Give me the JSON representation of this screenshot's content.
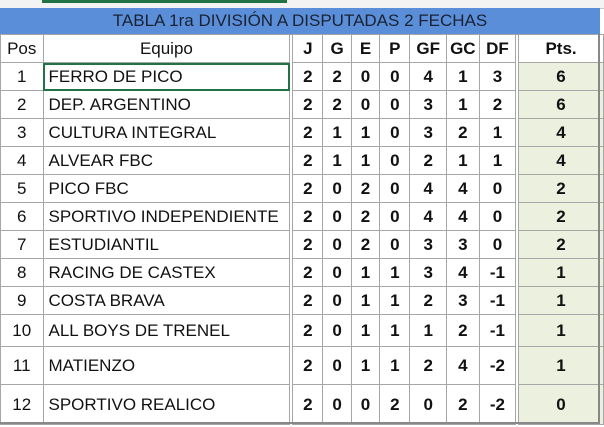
{
  "title": "TABLA 1ra DIVISIÓN A DISPUTADAS 2 FECHAS",
  "columns": [
    "Pos",
    "Equipo",
    "J",
    "G",
    "E",
    "P",
    "GF",
    "GC",
    "DF",
    "Pts."
  ],
  "rows": [
    [
      "1",
      "FERRO DE PICO",
      "2",
      "2",
      "0",
      "0",
      "4",
      "1",
      "3",
      "6"
    ],
    [
      "2",
      "DEP. ARGENTINO",
      "2",
      "2",
      "0",
      "0",
      "3",
      "1",
      "2",
      "6"
    ],
    [
      "3",
      "CULTURA INTEGRAL",
      "2",
      "1",
      "1",
      "0",
      "3",
      "2",
      "1",
      "4"
    ],
    [
      "4",
      "ALVEAR FBC",
      "2",
      "1",
      "1",
      "0",
      "2",
      "1",
      "1",
      "4"
    ],
    [
      "5",
      "PICO FBC",
      "2",
      "0",
      "2",
      "0",
      "4",
      "4",
      "0",
      "2"
    ],
    [
      "6",
      "SPORTIVO INDEPENDIENTE",
      "2",
      "0",
      "2",
      "0",
      "4",
      "4",
      "0",
      "2"
    ],
    [
      "7",
      "ESTUDIANTIL",
      "2",
      "0",
      "2",
      "0",
      "3",
      "3",
      "0",
      "2"
    ],
    [
      "8",
      "RACING DE CASTEX",
      "2",
      "0",
      "1",
      "1",
      "3",
      "4",
      "-1",
      "1"
    ],
    [
      "9",
      "COSTA BRAVA",
      "2",
      "0",
      "1",
      "1",
      "2",
      "3",
      "-1",
      "1"
    ],
    [
      "10",
      "ALL BOYS DE TRENEL",
      "2",
      "0",
      "1",
      "1",
      "1",
      "2",
      "-1",
      "1"
    ],
    [
      "11",
      "MATIENZO",
      "2",
      "0",
      "1",
      "1",
      "2",
      "4",
      "-2",
      "1"
    ],
    [
      "12",
      "SPORTIVO REALICO",
      "2",
      "0",
      "0",
      "2",
      "0",
      "2",
      "-2",
      "0"
    ]
  ],
  "colors": {
    "title_bg": "#5b8ed8",
    "points_bg": "#ebf0df",
    "selection": "#217346"
  }
}
